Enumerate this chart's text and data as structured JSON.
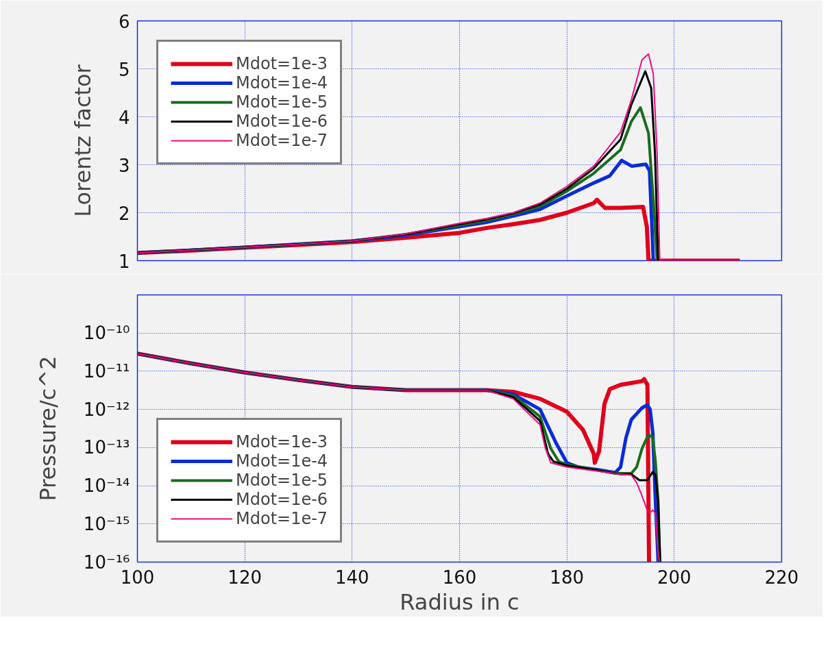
{
  "chart_data": [
    {
      "type": "line",
      "ylabel": "Lorentz factor",
      "xlim": [
        100,
        220
      ],
      "xticks": [
        100,
        120,
        140,
        160,
        180,
        200,
        220
      ],
      "ylim": [
        1,
        6
      ],
      "yticks": [
        1,
        2,
        3,
        4,
        5,
        6
      ],
      "tick_labels": "y",
      "grid": true,
      "legend": "top left",
      "line_style": "solid",
      "series": [
        {
          "name": "Mdot=1e-3",
          "color": "#e0001b",
          "x": [
            100,
            110,
            120,
            130,
            140,
            150,
            160,
            165,
            170,
            175,
            180,
            185,
            185.6,
            187.1,
            190,
            194.2,
            194.9,
            195.2,
            212.2
          ],
          "values": [
            1.16,
            1.21,
            1.27,
            1.33,
            1.39,
            1.48,
            1.58,
            1.68,
            1.76,
            1.85,
            2.0,
            2.2,
            2.27,
            2.1,
            2.1,
            2.12,
            1.7,
            1.0,
            1.0
          ]
        },
        {
          "name": "Mdot=1e-4",
          "color": "#0a2bd6",
          "x": [
            100,
            120,
            140,
            150,
            160,
            165,
            170,
            175,
            180,
            185,
            188,
            190.2,
            192.1,
            194.7,
            195.4,
            196.1
          ],
          "values": [
            1.16,
            1.28,
            1.41,
            1.53,
            1.71,
            1.8,
            1.93,
            2.07,
            2.35,
            2.62,
            2.77,
            3.09,
            2.97,
            3.01,
            2.87,
            1.0
          ]
        },
        {
          "name": "Mdot=1e-5",
          "color": "#1a6b1e",
          "x": [
            100,
            120,
            140,
            150,
            160,
            165,
            170,
            175,
            180,
            185,
            190,
            192,
            193.7,
            195.2,
            196.1,
            196.8
          ],
          "values": [
            1.16,
            1.28,
            1.41,
            1.55,
            1.74,
            1.84,
            1.97,
            2.13,
            2.45,
            2.82,
            3.31,
            3.9,
            4.19,
            3.66,
            2.27,
            1.0
          ]
        },
        {
          "name": "Mdot=1e-6",
          "color": "#000000",
          "x": [
            100,
            120,
            140,
            150,
            160,
            165,
            170,
            175,
            180,
            185,
            190,
            192,
            194.6,
            195.7,
            196.4,
            197.0
          ],
          "values": [
            1.16,
            1.28,
            1.41,
            1.55,
            1.76,
            1.86,
            1.99,
            2.17,
            2.5,
            2.92,
            3.53,
            4.25,
            4.95,
            4.6,
            3.26,
            1.0
          ]
        },
        {
          "name": "Mdot=1e-7",
          "color": "#ec0a80",
          "x": [
            100,
            120,
            140,
            150,
            160,
            165,
            170,
            175,
            180,
            185,
            190,
            192,
            194,
            195.2,
            196.1,
            196.8,
            197.3
          ],
          "values": [
            1.16,
            1.28,
            1.41,
            1.56,
            1.78,
            1.88,
            2.0,
            2.2,
            2.55,
            2.97,
            3.68,
            4.35,
            5.19,
            5.31,
            4.89,
            3.26,
            1.0
          ]
        }
      ]
    },
    {
      "type": "line",
      "ylabel": "Pressure/c^2",
      "xlabel": "Radius in c",
      "log": "y",
      "xlim": [
        100,
        220
      ],
      "xticks": [
        100,
        120,
        140,
        160,
        180,
        200,
        220
      ],
      "ylim": [
        1e-16,
        1e-09
      ],
      "yticks": [
        {
          "value": 1e-16,
          "label": "10⁻¹⁶"
        },
        {
          "value": 1e-15,
          "label": "10⁻¹⁵"
        },
        {
          "value": 1e-14,
          "label": "10⁻¹⁴"
        },
        {
          "value": 1e-13,
          "label": "10⁻¹³"
        },
        {
          "value": 1e-12,
          "label": "10⁻¹²"
        },
        {
          "value": 1e-11,
          "label": "10⁻¹¹"
        },
        {
          "value": 1e-10,
          "label": "10⁻¹⁰"
        }
      ],
      "grid": true,
      "legend": "bottom left",
      "line_style": "solid",
      "series": [
        {
          "name": "Mdot=1e-3",
          "color": "#e0001b",
          "x": [
            100,
            110,
            120,
            130,
            140,
            150,
            160,
            165,
            170,
            175,
            180,
            183,
            185,
            185.2,
            186,
            187,
            188,
            190,
            194,
            194.4,
            195,
            195.3
          ],
          "values": [
            2.9e-11,
            1.6e-11,
            9.3e-12,
            5.9e-12,
            3.9e-12,
            3.2e-12,
            3.2e-12,
            3.2e-12,
            2.9e-12,
            1.9e-12,
            8.7e-13,
            2.9e-13,
            6.9e-14,
            4e-14,
            8.1e-14,
            1.4e-12,
            3.4e-12,
            4.4e-12,
            5.5e-12,
            6.2e-12,
            4.4e-12,
            1e-16
          ]
        },
        {
          "name": "Mdot=1e-4",
          "color": "#0a2bd6",
          "x": [
            100,
            110,
            120,
            130,
            140,
            150,
            160,
            165,
            170,
            175,
            178,
            180,
            182,
            186,
            189,
            190,
            191,
            192,
            194,
            195,
            195.5,
            196,
            196.5,
            197
          ],
          "values": [
            2.9e-11,
            1.6e-11,
            9.3e-12,
            5.9e-12,
            3.9e-12,
            3.2e-12,
            3.2e-12,
            3.2e-12,
            2.5e-12,
            1e-12,
            1.3e-13,
            4e-14,
            3.1e-14,
            2.6e-14,
            2.2e-14,
            3.1e-14,
            1.8e-13,
            5.4e-13,
            1.1e-12,
            1.3e-12,
            1e-12,
            2.5e-13,
            3.9e-15,
            1e-16
          ]
        },
        {
          "name": "Mdot=1e-5",
          "color": "#1a6b1e",
          "x": [
            100,
            110,
            120,
            130,
            140,
            150,
            160,
            165,
            170,
            175,
            177,
            178.5,
            180,
            186,
            189,
            192,
            193,
            194,
            195.2,
            196,
            196.5,
            197,
            197.3
          ],
          "values": [
            2.9e-11,
            1.6e-11,
            9.3e-12,
            5.9e-12,
            3.9e-12,
            3.2e-12,
            3.2e-12,
            3.2e-12,
            2.3e-12,
            6.5e-13,
            9.5e-14,
            4.3e-14,
            3.6e-14,
            2.5e-14,
            2.1e-14,
            2.1e-14,
            3.1e-14,
            9.5e-14,
            2.2e-13,
            1.8e-13,
            4.3e-14,
            3.9e-15,
            1e-16
          ]
        },
        {
          "name": "Mdot=1e-6",
          "color": "#000000",
          "x": [
            100,
            110,
            120,
            130,
            140,
            150,
            160,
            165,
            170,
            175,
            176.5,
            177.5,
            180,
            186,
            190,
            192,
            193.5,
            195,
            196,
            196.5,
            197,
            197.4
          ],
          "values": [
            2.9e-11,
            1.6e-11,
            9.3e-12,
            5.9e-12,
            3.9e-12,
            3.2e-12,
            3.2e-12,
            3.2e-12,
            2.1e-12,
            5e-13,
            6.9e-14,
            4.3e-14,
            3.4e-14,
            2.5e-14,
            2e-14,
            2e-14,
            1.4e-14,
            1.4e-14,
            2.3e-14,
            1.9e-14,
            3.9e-15,
            1e-16
          ]
        },
        {
          "name": "Mdot=1e-7",
          "color": "#ec0a80",
          "x": [
            100,
            110,
            120,
            130,
            140,
            150,
            160,
            165,
            170,
            175,
            176,
            177,
            180,
            186,
            190,
            192,
            193,
            194,
            195,
            195.5,
            196,
            196.5,
            197,
            197.3
          ],
          "values": [
            2.9e-11,
            1.6e-11,
            9.3e-12,
            5.9e-12,
            3.9e-12,
            3.2e-12,
            3.2e-12,
            3.2e-12,
            1.9e-12,
            4e-13,
            9.5e-14,
            4e-14,
            3.1e-14,
            2.4e-14,
            2e-14,
            1.9e-14,
            1.2e-14,
            5.4e-15,
            2.2e-15,
            2e-15,
            2.3e-15,
            1.9e-15,
            1.6e-16,
            1e-16
          ]
        }
      ]
    }
  ]
}
